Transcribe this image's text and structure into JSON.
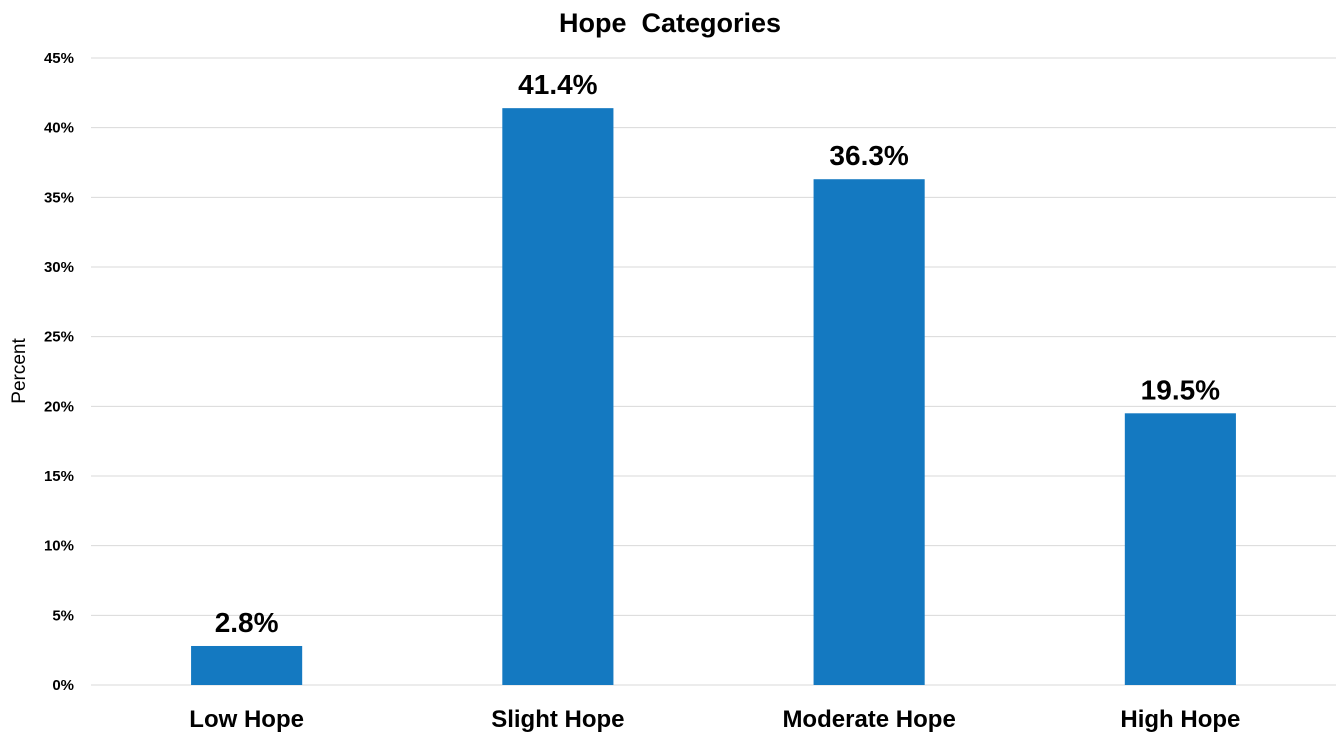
{
  "chart_data": {
    "type": "bar",
    "title": "Hope  Categories",
    "xlabel": "",
    "ylabel": "Percent",
    "categories": [
      "Low Hope",
      "Slight Hope",
      "Moderate Hope",
      "High Hope"
    ],
    "values": [
      2.8,
      41.4,
      36.3,
      19.5
    ],
    "data_labels": [
      "2.8%",
      "41.4%",
      "36.3%",
      "19.5%"
    ],
    "ylim": [
      0,
      45
    ],
    "yticks": [
      0,
      5,
      10,
      15,
      20,
      25,
      30,
      35,
      40,
      45
    ],
    "ytick_labels": [
      "0%",
      "5%",
      "10%",
      "15%",
      "20%",
      "25%",
      "30%",
      "35%",
      "40%",
      "45%"
    ],
    "grid": true,
    "legend": "none",
    "bar_color": "#1479c1",
    "grid_color": "#d9d9d9"
  }
}
